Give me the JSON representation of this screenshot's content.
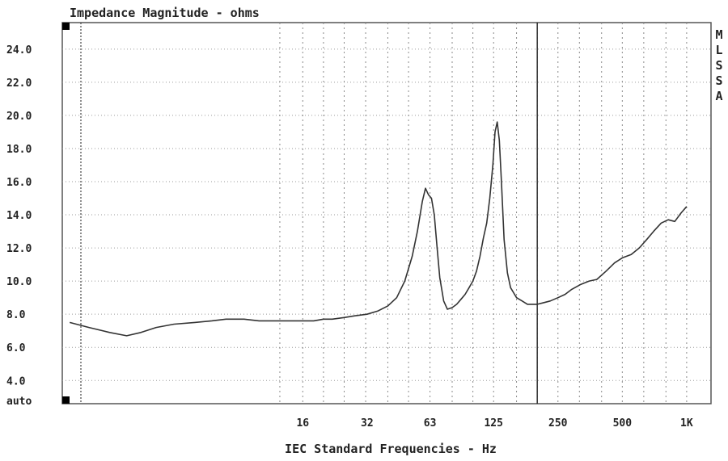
{
  "chart_data": {
    "type": "line",
    "title": "Impedance Magnitude - ohms",
    "xlabel": "IEC Standard Frequencies - Hz",
    "ylabel": "",
    "x_scale": "log",
    "xlim": [
      1.2,
      1300
    ],
    "ylim": [
      2.6,
      25.6
    ],
    "grid": true,
    "y_ticks": [
      {
        "value": 4,
        "label": "4.0"
      },
      {
        "value": 6,
        "label": "6.0"
      },
      {
        "value": 8,
        "label": "8.0"
      },
      {
        "value": 10,
        "label": "10.0"
      },
      {
        "value": 12,
        "label": "12.0"
      },
      {
        "value": 14,
        "label": "14.0"
      },
      {
        "value": 16,
        "label": "16.0"
      },
      {
        "value": 18,
        "label": "18.0"
      },
      {
        "value": 20,
        "label": "20.0"
      },
      {
        "value": 22,
        "label": "22.0"
      },
      {
        "value": 24,
        "label": "24.0"
      }
    ],
    "y_bottom_label": "auto",
    "x_tick_labels": [
      {
        "value": 16,
        "label": "16"
      },
      {
        "value": 32,
        "label": "32"
      },
      {
        "value": 63,
        "label": "63"
      },
      {
        "value": 125,
        "label": "125"
      },
      {
        "value": 250,
        "label": "250"
      },
      {
        "value": 500,
        "label": "500"
      },
      {
        "value": 1000,
        "label": "1K"
      }
    ],
    "x_gridlines": [
      12.5,
      16,
      20,
      25,
      31.5,
      40,
      50,
      63,
      80,
      100,
      125,
      160,
      200,
      250,
      315,
      400,
      500,
      630,
      800,
      1000
    ],
    "cursor_x": 200,
    "side_label": [
      "M",
      "L",
      "S",
      "S",
      "A"
    ],
    "series": [
      {
        "color": "#333333",
        "x": [
          1.3,
          1.6,
          2.0,
          2.4,
          2.8,
          3.3,
          4.0,
          5.0,
          6.0,
          7.0,
          8.5,
          10,
          12,
          14,
          16,
          18,
          20,
          22,
          25,
          28,
          32,
          36,
          40,
          44,
          48,
          52,
          55,
          58,
          60,
          62,
          64,
          66,
          68,
          70,
          73,
          76,
          80,
          84,
          88,
          92,
          96,
          100,
          104,
          108,
          112,
          116,
          120,
          124,
          127,
          130,
          133,
          136,
          140,
          145,
          150,
          160,
          170,
          180,
          190,
          200,
          215,
          230,
          250,
          270,
          290,
          320,
          350,
          380,
          420,
          460,
          500,
          550,
          600,
          650,
          700,
          760,
          820,
          880,
          940,
          1000
        ],
        "y": [
          7.5,
          7.2,
          6.9,
          6.7,
          6.9,
          7.2,
          7.4,
          7.5,
          7.6,
          7.7,
          7.7,
          7.6,
          7.6,
          7.6,
          7.6,
          7.6,
          7.7,
          7.7,
          7.8,
          7.9,
          8.0,
          8.2,
          8.5,
          9.0,
          10.0,
          11.5,
          13.0,
          14.8,
          15.6,
          15.2,
          15.0,
          14.0,
          12.0,
          10.2,
          8.8,
          8.3,
          8.4,
          8.6,
          8.9,
          9.2,
          9.6,
          10.0,
          10.6,
          11.5,
          12.6,
          13.5,
          15.0,
          17.0,
          19.0,
          19.6,
          18.5,
          16.0,
          12.5,
          10.5,
          9.6,
          9.0,
          8.8,
          8.6,
          8.6,
          8.6,
          8.7,
          8.8,
          9.0,
          9.2,
          9.5,
          9.8,
          10.0,
          10.1,
          10.6,
          11.1,
          11.4,
          11.6,
          12.0,
          12.5,
          13.0,
          13.5,
          13.7,
          13.6,
          14.1,
          14.5
        ]
      }
    ]
  }
}
